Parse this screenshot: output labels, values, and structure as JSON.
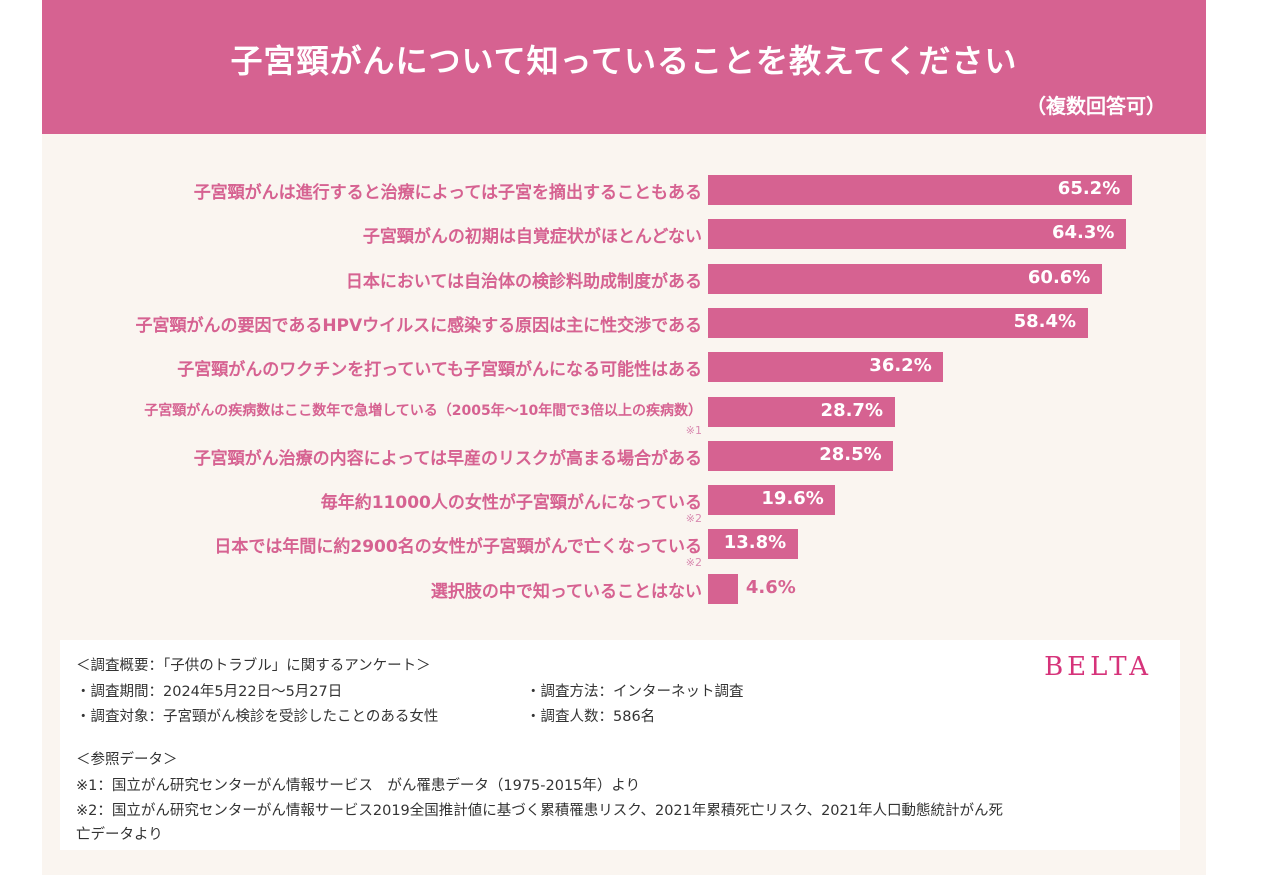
{
  "header": {
    "title": "子宮頸がんについて知っていることを教えてください",
    "subtitle": "（複数回答可）"
  },
  "colors": {
    "accent": "#d66291",
    "background": "#faf5f0",
    "brand": "#d6337a"
  },
  "chart_data": {
    "type": "bar",
    "orientation": "horizontal",
    "unit": "%",
    "categories": [
      "子宮頸がんは進行すると治療によっては子宮を摘出することもある",
      "子宮頸がんの初期は自覚症状がほとんどない",
      "日本においては自治体の検診料助成制度がある",
      "子宮頸がんの要因であるHPVウイルスに感染する原因は主に性交渉である",
      "子宮頸がんのワクチンを打っていても子宮頸がんになる可能性はある",
      "子宮頸がんの疾病数はここ数年で急増している（2005年〜10年間で3倍以上の疾病数）",
      "子宮頸がん治療の内容によっては早産のリスクが高まる場合がある",
      "毎年約11000人の女性が子宮頸がんになっている",
      "日本では年間に約2900名の女性が子宮頸がんで亡くなっている",
      "選択肢の中で知っていることはない"
    ],
    "values": [
      65.2,
      64.3,
      60.6,
      58.4,
      36.2,
      28.7,
      28.5,
      19.6,
      13.8,
      4.6
    ],
    "value_labels": [
      "65.2%",
      "64.3%",
      "60.6%",
      "58.4%",
      "36.2%",
      "28.7%",
      "28.5%",
      "19.6%",
      "13.8%",
      "4.6%"
    ],
    "notes": [
      "",
      "",
      "",
      "",
      "",
      "※1",
      "",
      "※2",
      "※2",
      ""
    ]
  },
  "footer": {
    "survey_overview": "＜調査概要：「子供のトラブル」に関するアンケート＞",
    "period": "・調査期間：2024年5月22日〜5月27日",
    "method": "・調査方法：インターネット調査",
    "target": "・調査対象：子宮頸がん検診を受診したことのある女性",
    "count": "・調査人数：586名",
    "reference_title": "＜参照データ＞",
    "ref1": "※1：国立がん研究センターがん情報サービス　がん罹患データ（1975-2015年）より",
    "ref2_line1": "※2：国立がん研究センターがん情報サービス2019全国推計値に基づく累積罹患リスク、2021年累積死亡リスク、2021年人口動態統計がん死",
    "ref2_line2": "亡データより",
    "brand": "BELTA"
  }
}
